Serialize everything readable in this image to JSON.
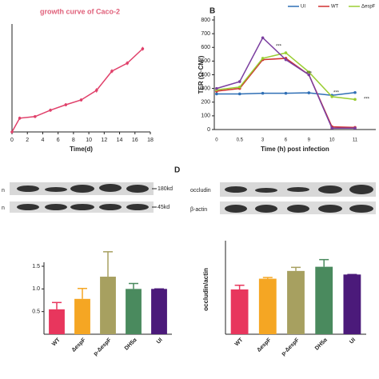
{
  "chart_data": [
    {
      "type": "line",
      "title": "growth curve of Caco-2",
      "title_color": "#e0607a",
      "x_label": "Time(d)",
      "x": [
        0,
        1,
        3,
        5,
        7,
        9,
        11,
        13,
        15,
        17
      ],
      "xlim": [
        0,
        18
      ],
      "xticks": [
        0,
        2,
        4,
        6,
        8,
        10,
        12,
        14,
        16,
        18
      ],
      "ylim": [
        0,
        3.25
      ],
      "series": [
        {
          "color": "#e0406a",
          "values": [
            0,
            0.43,
            0.48,
            0.68,
            0.85,
            1.0,
            1.3,
            1.9,
            2.15,
            2.6
          ],
          "errors": [
            0,
            0.05,
            0.04,
            0.05,
            0.05,
            0.05,
            0.07,
            0.06,
            0.06,
            0.06
          ]
        }
      ]
    },
    {
      "type": "line",
      "panel_label": "B",
      "y_label": "TER (Ω·CM²)",
      "x_label": "Time (h) post infection",
      "categories": [
        "0",
        "0.5",
        "3",
        "6",
        "9",
        "10",
        "11"
      ],
      "ylim": [
        0,
        800
      ],
      "yticks": [
        0,
        100,
        200,
        300,
        400,
        500,
        600,
        700,
        800
      ],
      "series": [
        {
          "name": "UI",
          "color": "#2f6fb5",
          "values": [
            260,
            260,
            265,
            265,
            268,
            250,
            270
          ]
        },
        {
          "name": "WT",
          "color": "#d03030",
          "values": [
            280,
            300,
            510,
            520,
            400,
            20,
            15
          ]
        },
        {
          "name": "ΔespF",
          "color": "#9acd32",
          "values": [
            290,
            310,
            520,
            560,
            420,
            240,
            220
          ]
        },
        {
          "color": "#7b3fa0",
          "values": [
            300,
            350,
            670,
            510,
            400,
            10,
            10
          ]
        }
      ],
      "annotations": [
        "***",
        "***",
        "***",
        "***"
      ]
    },
    {
      "type": "bar",
      "categories": [
        "WT",
        "ΔespF",
        "p-ΔespF",
        "DH5α",
        "UI"
      ],
      "colors": [
        "#e8365d",
        "#f5a623",
        "#a7a060",
        "#4a8a5e",
        "#4b1a7a"
      ],
      "values": [
        0.55,
        0.78,
        1.27,
        1.0,
        1.0
      ],
      "errors": [
        0.15,
        0.23,
        0.55,
        0.12,
        0
      ],
      "ylim": [
        0,
        1.5
      ],
      "yticks": [
        {
          "value": 0.5,
          "label": "0.5"
        },
        {
          "value": 1,
          "label": "1.0"
        },
        {
          "value": 1.5,
          "label": "1.5"
        }
      ]
    },
    {
      "type": "bar",
      "panel_label": "D",
      "y_label": "occludin/actin",
      "categories": [
        "WT",
        "ΔespF",
        "p-ΔespF",
        "DH5α",
        "UI"
      ],
      "colors": [
        "#e8365d",
        "#f5a623",
        "#a7a060",
        "#4a8a5e",
        "#4b1a7a"
      ],
      "values": [
        0.75,
        0.93,
        1.06,
        1.13,
        1.0
      ],
      "errors": [
        0.07,
        0.02,
        0.06,
        0.12,
        0
      ],
      "ylim": [
        0,
        1.5
      ]
    }
  ],
  "blots": {
    "c_top_label": "n",
    "c_bottom_label": "n",
    "c_top_size": "180kd",
    "c_bottom_size": "45kd",
    "d_top_label": "occludin",
    "d_bottom_label": "β-actin"
  }
}
